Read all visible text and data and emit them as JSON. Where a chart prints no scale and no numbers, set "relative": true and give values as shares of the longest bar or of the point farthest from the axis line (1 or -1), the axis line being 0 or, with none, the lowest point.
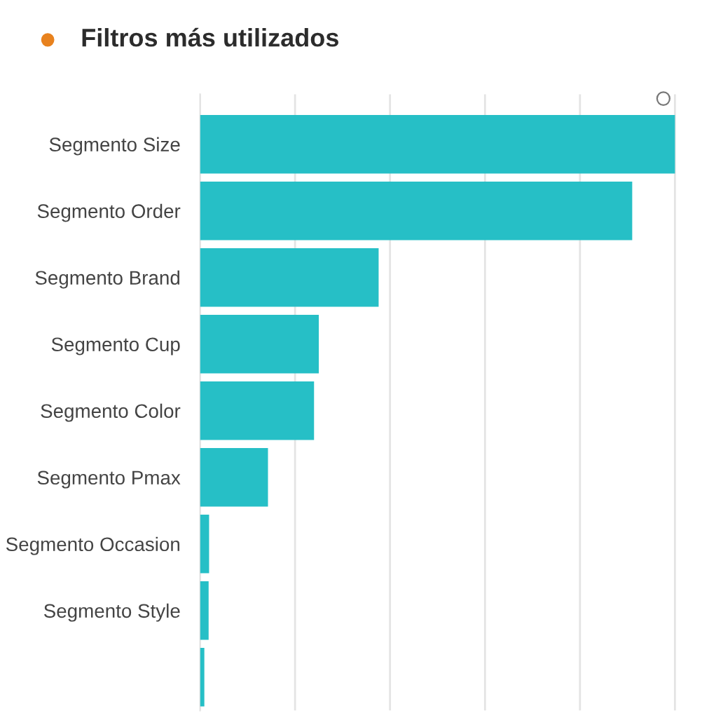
{
  "chart_data": {
    "type": "bar",
    "orientation": "horizontal",
    "relative": true,
    "title": "Filtros más utilizados",
    "categories": [
      "Segmento Size",
      "Segmento Order",
      "Segmento Brand",
      "Segmento Cup",
      "Segmento Color",
      "Segmento Pmax",
      "Segmento Occasion",
      "Segmento Style",
      null
    ],
    "values": [
      1,
      0.91,
      0.376,
      0.25,
      0.24,
      0.143,
      0.019,
      0.018,
      0.009
    ],
    "color": "#26bfc6",
    "grid": "x"
  }
}
